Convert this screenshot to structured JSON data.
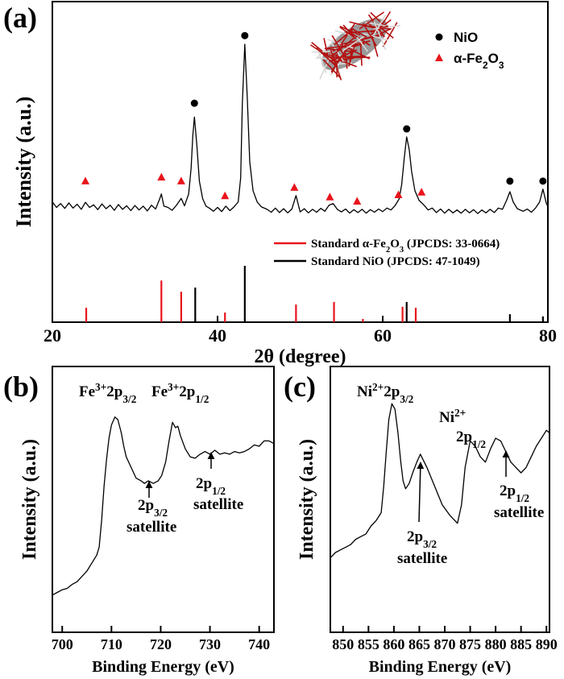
{
  "chart_data": [
    {
      "type": "line",
      "panel_label": "(a)",
      "x_label": "2θ (degree)",
      "y_label": "Intensity (a.u.)",
      "xlim": [
        20,
        80
      ],
      "xticks": [
        20,
        40,
        60,
        80
      ],
      "ylim": [
        0,
        100
      ],
      "color": "#000000",
      "x": [
        20,
        20.5,
        21,
        21.5,
        22,
        22.5,
        23,
        23.5,
        24,
        24.5,
        25,
        25.5,
        26,
        26.5,
        27,
        27.5,
        28,
        28.5,
        29,
        29.5,
        30,
        30.5,
        31,
        31.5,
        32,
        32.5,
        33,
        33.2,
        33.5,
        34,
        34.5,
        35,
        35.6,
        36,
        36.5,
        36.8,
        37,
        37.2,
        37.5,
        37.8,
        38.2,
        38.6,
        39,
        39.5,
        40,
        40.5,
        41,
        41.5,
        42,
        42.5,
        42.8,
        43,
        43.3,
        43.6,
        43.9,
        44.3,
        44.8,
        45.3,
        46,
        46.5,
        47,
        47.5,
        48,
        48.5,
        49,
        49.5,
        50,
        50.5,
        51,
        51.5,
        52,
        52.5,
        53,
        53.5,
        54,
        54.5,
        55,
        55.5,
        56,
        56.5,
        57,
        57.5,
        58,
        58.5,
        59,
        59.5,
        60,
        60.5,
        61,
        61.5,
        62,
        62.3,
        62.6,
        62.9,
        63.2,
        63.5,
        63.9,
        64.4,
        65,
        65.5,
        66,
        66.5,
        67,
        67.5,
        68,
        68.5,
        69,
        69.5,
        70,
        70.5,
        71,
        71.5,
        72,
        72.5,
        73,
        73.5,
        74,
        74.5,
        75,
        75.4,
        75.8,
        76.3,
        77,
        77.5,
        78,
        78.5,
        79,
        79.4,
        79.8,
        80
      ],
      "values": [
        37.5,
        35.8,
        37,
        35.5,
        37.2,
        35.6,
        36.8,
        35.2,
        37.4,
        35.8,
        36.6,
        35.1,
        36.9,
        35.4,
        36.5,
        34.9,
        36.7,
        35.2,
        36.3,
        34.8,
        36.4,
        35,
        36.2,
        34.7,
        36.5,
        35.3,
        38.5,
        40,
        36.2,
        35.8,
        34.9,
        36.4,
        38.6,
        36.3,
        40,
        48,
        58,
        64,
        55,
        44,
        38.5,
        36.2,
        35.6,
        34.6,
        35.8,
        34.5,
        36.2,
        34.8,
        36,
        37.5,
        45,
        68,
        86.7,
        70,
        50,
        41,
        37.5,
        36,
        35.2,
        34.3,
        35.6,
        34.2,
        35.4,
        34.1,
        35.3,
        39.5,
        34.4,
        35.4,
        34.1,
        35.2,
        34.3,
        35.5,
        34.6,
        36.5,
        37,
        35.2,
        34.4,
        35.3,
        34,
        35.1,
        34.2,
        35.2,
        34,
        35.1,
        34.3,
        35.3,
        34.5,
        35.6,
        35,
        36.4,
        38.5,
        43,
        51,
        57.8,
        54,
        47,
        41,
        38,
        36.5,
        35,
        35.6,
        34.2,
        35.3,
        34,
        35.2,
        34.1,
        35,
        34,
        35.2,
        34.1,
        35.1,
        33.9,
        35,
        34.1,
        35.2,
        34.2,
        35.6,
        35.2,
        38,
        40.7,
        37.5,
        35.4,
        34.6,
        35.3,
        34.3,
        35.6,
        37.5,
        41.5,
        37.2,
        36
      ],
      "markers": [
        {
          "name": [
            {
              "t": "NiO"
            }
          ],
          "marker": "circle",
          "color": "#000000",
          "x": [
            37.2,
            43.3,
            62.9,
            75.4,
            79.4
          ],
          "values": [
            68.3,
            89.4,
            60.3,
            44,
            44
          ]
        },
        {
          "name": [
            {
              "t": "α-Fe"
            },
            {
              "t": "2",
              "s": "sub"
            },
            {
              "t": "O"
            },
            {
              "t": "3",
              "s": "sub"
            }
          ],
          "marker": "triangle",
          "color": "#e8141b",
          "x": [
            24,
            33.2,
            35.6,
            40.9,
            49.3,
            53.6,
            56.9,
            61.9,
            64.7
          ],
          "values": [
            44,
            45.2,
            44,
            39.4,
            42,
            39,
            37.7,
            39.7,
            40.5
          ]
        }
      ],
      "sticks": [
        {
          "name": [
            {
              "t": "Standard α-Fe"
            },
            {
              "t": "2",
              "s": "sub"
            },
            {
              "t": "O"
            },
            {
              "t": "3",
              "s": "sub"
            },
            {
              "t": " (JPCDS: 33-0664)"
            }
          ],
          "color": "#e8141b",
          "x": [
            24.1,
            33.2,
            35.6,
            40.9,
            49.5,
            54.1,
            57.6,
            62.4,
            64.0
          ],
          "values": [
            4.5,
            13,
            9.5,
            3,
            5.5,
            6.3,
            1,
            4.8,
            4.5
          ]
        },
        {
          "name": [
            {
              "t": "Standard NiO (JPCDS: 47-1049)"
            }
          ],
          "color": "#000000",
          "x": [
            37.3,
            43.3,
            62.9,
            75.4,
            79.4
          ],
          "values": [
            10.8,
            17.6,
            6.3,
            2.5,
            1.8
          ]
        }
      ]
    },
    {
      "type": "line",
      "panel_label": "(b)",
      "x_label": "Binding Energy (eV)",
      "y_label": "Intensity (a.u.)",
      "xlim": [
        698,
        743
      ],
      "xticks": [
        700,
        710,
        720,
        730,
        740
      ],
      "ylim": [
        0,
        100
      ],
      "color": "#000000",
      "x": [
        698,
        699,
        700,
        701,
        702,
        703,
        704,
        705,
        706,
        707,
        707.5,
        708,
        708.5,
        709,
        709.5,
        710,
        710.7,
        711.3,
        712,
        712.5,
        713,
        714,
        715,
        716,
        716.7,
        717.5,
        718.5,
        719.5,
        720.2,
        721,
        721.7,
        722.4,
        723,
        723.5,
        724,
        725,
        726,
        727,
        728,
        729,
        730,
        731,
        732,
        733,
        734,
        735,
        736,
        737,
        738,
        739,
        740,
        741,
        742,
        743
      ],
      "values": [
        14,
        15,
        16,
        16.5,
        18,
        19,
        21,
        23,
        26,
        29,
        32,
        42,
        55,
        65,
        73,
        78,
        81,
        80,
        75,
        70,
        66,
        62,
        58,
        57,
        56,
        57,
        56,
        57,
        59,
        64,
        72,
        79,
        77,
        77.5,
        74,
        69,
        66,
        65.5,
        67,
        68,
        67,
        68.5,
        67,
        67.5,
        67,
        68,
        67.5,
        68,
        69,
        70.5,
        70,
        72,
        72,
        71
      ],
      "annotations": [
        {
          "lines": [
            [
              {
                "t": "Fe"
              },
              {
                "t": "3+",
                "s": "sup"
              },
              {
                "t": "2p"
              },
              {
                "t": "3/2",
                "s": "sub"
              }
            ]
          ]
        },
        {
          "lines": [
            [
              {
                "t": "Fe"
              },
              {
                "t": "3+",
                "s": "sup"
              },
              {
                "t": "2p"
              },
              {
                "t": "1/2",
                "s": "sub"
              }
            ]
          ]
        },
        {
          "lines": [
            [
              {
                "t": "2p"
              },
              {
                "t": "3/2",
                "s": "sub"
              }
            ],
            [
              {
                "t": "satellite"
              }
            ]
          ]
        },
        {
          "lines": [
            [
              {
                "t": "2p"
              },
              {
                "t": "1/2",
                "s": "sub"
              }
            ],
            [
              {
                "t": "satellite"
              }
            ]
          ]
        }
      ]
    },
    {
      "type": "line",
      "panel_label": "(c)",
      "x_label": "Binding Energy (eV)",
      "y_label": "Intensity (a.u.)",
      "xlim": [
        847.5,
        890.6
      ],
      "xticks": [
        850,
        855,
        860,
        865,
        870,
        875,
        880,
        885,
        890
      ],
      "ylim": [
        0,
        100
      ],
      "color": "#000000",
      "x": [
        847.5,
        848.5,
        849.5,
        850.5,
        851.5,
        852.5,
        853.5,
        854.5,
        855.5,
        856.5,
        857.5,
        858,
        858.5,
        859,
        859.6,
        860.2,
        860.8,
        861.3,
        861.8,
        862.3,
        863,
        863.7,
        864.5,
        865.2,
        866.5,
        868,
        869.5,
        871,
        872.5,
        873.3,
        874,
        875,
        876,
        877,
        878,
        879,
        880,
        881,
        882,
        883,
        884,
        885,
        886,
        887,
        888,
        889,
        890,
        890.6
      ],
      "values": [
        28,
        30,
        31,
        32,
        33,
        35,
        36,
        37,
        40,
        42,
        45,
        55,
        68,
        80,
        86,
        84,
        75,
        65,
        57,
        54,
        56,
        60,
        64,
        67,
        62,
        55,
        48,
        44,
        41,
        48,
        62,
        72,
        70,
        66,
        64,
        69,
        73,
        72,
        68,
        64,
        62,
        60,
        62,
        66,
        70,
        73,
        76,
        75
      ],
      "annotations": [
        {
          "lines": [
            [
              {
                "t": "Ni"
              },
              {
                "t": "2+",
                "s": "sup"
              },
              {
                "t": "2p"
              },
              {
                "t": "3/2",
                "s": "sub"
              }
            ]
          ]
        },
        {
          "lines": [
            [
              {
                "t": "Ni"
              },
              {
                "t": "2+",
                "s": "sup"
              }
            ],
            [
              {
                "t": "2p"
              },
              {
                "t": "1/2",
                "s": "sub"
              }
            ]
          ]
        },
        {
          "lines": [
            [
              {
                "t": "2p"
              },
              {
                "t": "3/2",
                "s": "sub"
              }
            ],
            [
              {
                "t": "satellite"
              }
            ]
          ]
        },
        {
          "lines": [
            [
              {
                "t": "2p"
              },
              {
                "t": "1/2",
                "s": "sub"
              }
            ],
            [
              {
                "t": "satellite"
              }
            ]
          ]
        }
      ]
    }
  ]
}
